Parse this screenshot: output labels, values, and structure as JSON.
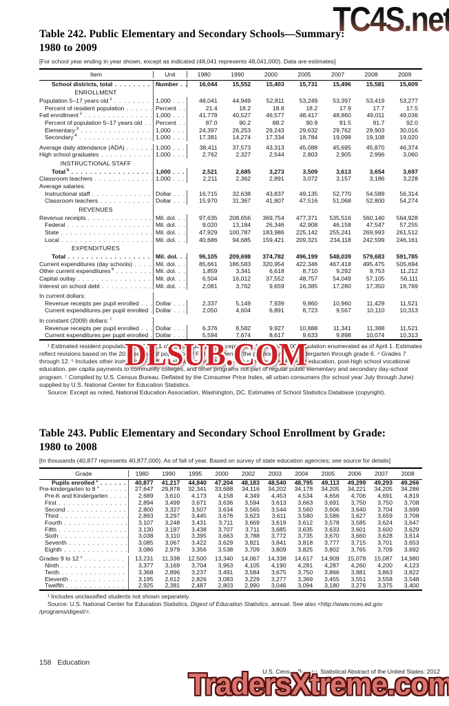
{
  "watermarks": {
    "top": "TC4S.net",
    "middle": "DLSUB.COM",
    "bottom": "TradersXtreme.com"
  },
  "footer": {
    "page_number": "158",
    "section": "Education",
    "source_line": "U.S. Census Bureau, Statistical Abstract of the United States: 2012"
  },
  "table242": {
    "title_line1": "Table 242. Public Elementary and Secondary Schools—Summary:",
    "title_line2": "1980 to 2009",
    "note": "[For school year ending in year shown, except as indicated (48,041 represents 48,041,000). Data are estimates]",
    "columns": [
      "Item",
      "Unit",
      "1980",
      "1990",
      "2000",
      "2005",
      "2007",
      "2008",
      "2009"
    ],
    "rows": [
      {
        "type": "data",
        "label": "School districts, total",
        "unit": "Number",
        "bold": true,
        "indent": 2,
        "values": [
          "16,044",
          "15,552",
          "15,403",
          "15,731",
          "15,496",
          "15,581",
          "15,609"
        ]
      },
      {
        "type": "section",
        "label": "ENROLLMENT"
      },
      {
        "type": "data",
        "label": "Population 5–17 years old",
        "sup": "1",
        "unit": "1,000",
        "indent": 0,
        "values": [
          "48,041",
          "44,949",
          "52,811",
          "53,249",
          "53,397",
          "53,419",
          "53,277"
        ]
      },
      {
        "type": "data",
        "label": "Percent of resident population",
        "unit": "Percent",
        "indent": 1,
        "values": [
          "21.4",
          "18.2",
          "18.8",
          "18.2",
          "17.9",
          "17.7",
          "17.5"
        ]
      },
      {
        "type": "data",
        "label": "Fall enrollment",
        "sup": "2",
        "unit": "1,000",
        "indent": 0,
        "values": [
          "41,778",
          "40,527",
          "46,577",
          "48,417",
          "48,860",
          "49,011",
          "49,036"
        ]
      },
      {
        "type": "data",
        "label": "Percent of population 5–17 years old",
        "unit": "Percent",
        "indent": 1,
        "values": [
          "87.0",
          "90.2",
          "88.2",
          "90.9",
          "91.5",
          "91.7",
          "92.0"
        ]
      },
      {
        "type": "data",
        "label": "Elementary",
        "sup": "3",
        "unit": "1,000",
        "indent": 1,
        "values": [
          "24,397",
          "26,253",
          "29,243",
          "29,632",
          "29,762",
          "29,903",
          "30,016"
        ]
      },
      {
        "type": "data",
        "label": "Secondary",
        "sup": "4",
        "unit": "1,000",
        "indent": 1,
        "values": [
          "17,381",
          "14,274",
          "17,334",
          "18,784",
          "19,098",
          "19,108",
          "19,020"
        ]
      },
      {
        "type": "data",
        "label": "Average daily attendance (ADA)",
        "unit": "1,000",
        "indent": 0,
        "spacer": true,
        "values": [
          "38,411",
          "37,573",
          "43,313",
          "45,088",
          "45,695",
          "45,870",
          "46,374"
        ]
      },
      {
        "type": "data",
        "label": "High school graduates",
        "unit": "1,000",
        "indent": 0,
        "values": [
          "2,762",
          "2,327",
          "2,544",
          "2,803",
          "2,905",
          "2,996",
          "3,060"
        ]
      },
      {
        "type": "section",
        "label": "INSTRUCTIONAL STAFF"
      },
      {
        "type": "data",
        "label": "Total",
        "sup": "5",
        "unit": "1,000",
        "bold": true,
        "indent": 2,
        "values": [
          "2,521",
          "2,685",
          "3,273",
          "3,509",
          "3,613",
          "3,654",
          "3,697"
        ]
      },
      {
        "type": "data",
        "label": "Classroom teachers",
        "unit": "1,000",
        "indent": 0,
        "values": [
          "2,211",
          "2,362",
          "2,891",
          "3,072",
          "3,157",
          "3,186",
          "3,228"
        ]
      },
      {
        "type": "plain",
        "label": "Average salaries:",
        "indent": 0
      },
      {
        "type": "data",
        "label": "Instructional staff",
        "unit": "Dollar",
        "indent": 1,
        "values": [
          "16,715",
          "32,638",
          "43,837",
          "49,135",
          "52,770",
          "54,589",
          "56,314"
        ]
      },
      {
        "type": "data",
        "label": "Classroom teachers",
        "unit": "Dollar",
        "indent": 1,
        "values": [
          "15,970",
          "31,367",
          "41,807",
          "47,516",
          "51,068",
          "52,800",
          "54,274"
        ]
      },
      {
        "type": "section",
        "label": "REVENUES"
      },
      {
        "type": "data",
        "label": "Revenue receipts",
        "unit": "Mil. dol.",
        "indent": 0,
        "values": [
          "97,635",
          "208,656",
          "369,754",
          "477,371",
          "535,516",
          "560,140",
          "564,928"
        ]
      },
      {
        "type": "data",
        "label": "Federal",
        "unit": "Mil. dol.",
        "indent": 1,
        "values": [
          "9,020",
          "13,184",
          "26,346",
          "42,908",
          "46,158",
          "47,547",
          "57,255"
        ]
      },
      {
        "type": "data",
        "label": "State",
        "unit": "Mil. dol.",
        "indent": 1,
        "values": [
          "47,929",
          "100,787",
          "183,986",
          "225,142",
          "255,241",
          "269,993",
          "261,512"
        ]
      },
      {
        "type": "data",
        "label": "Local",
        "unit": "Mil. dol.",
        "indent": 1,
        "values": [
          "40,686",
          "94,685",
          "159,421",
          "209,321",
          "234,118",
          "242,599",
          "246,161"
        ]
      },
      {
        "type": "section",
        "label": "EXPENDITURES"
      },
      {
        "type": "data",
        "label": "Total",
        "unit": "Mil. dol.",
        "bold": true,
        "indent": 2,
        "values": [
          "96,105",
          "209,698",
          "374,782",
          "496,199",
          "548,039",
          "579,683",
          "591,785"
        ]
      },
      {
        "type": "data",
        "label": "Current expenditures (day schools)",
        "unit": "Mil. dol.",
        "indent": 0,
        "values": [
          "85,661",
          "186,583",
          "320,954",
          "422,346",
          "467,418",
          "495,475",
          "505,694"
        ]
      },
      {
        "type": "data",
        "label": "Other current expenditures",
        "sup": "6",
        "unit": "Mil. dol.",
        "indent": 0,
        "values": [
          "1,859",
          "3,341",
          "6,618",
          "8,710",
          "9,292",
          "9,753",
          "11,212"
        ]
      },
      {
        "type": "data",
        "label": "Capital outlay",
        "unit": "Mil. dol.",
        "indent": 0,
        "values": [
          "6,504",
          "16,012",
          "37,552",
          "48,757",
          "54,049",
          "57,105",
          "56,111"
        ]
      },
      {
        "type": "data",
        "label": "Interest on school debt",
        "unit": "Mil. dol.",
        "indent": 0,
        "values": [
          "2,081",
          "3,762",
          "9,659",
          "16,385",
          "17,280",
          "17,350",
          "18,769"
        ]
      },
      {
        "type": "plain",
        "label": "In current dollars:",
        "indent": 0,
        "spacer": true
      },
      {
        "type": "data",
        "label": "Revenue receipts per pupil enrolled",
        "unit": "Dollar",
        "indent": 1,
        "values": [
          "2,337",
          "5,149",
          "7,939",
          "9,860",
          "10,960",
          "11,429",
          "11,521"
        ]
      },
      {
        "type": "data",
        "label": "Current expenditures per pupil enrolled",
        "unit": "Dollar",
        "indent": 1,
        "values": [
          "2,050",
          "4,604",
          "6,891",
          "8,723",
          "9,567",
          "10,110",
          "10,313"
        ]
      },
      {
        "type": "plain",
        "label": "In constant (2009) dollars:",
        "sup": "7",
        "indent": 0,
        "spacer": true
      },
      {
        "type": "data",
        "label": "Revenue receipts per pupil enrolled",
        "unit": "Dollar",
        "indent": 1,
        "values": [
          "6,376",
          "8,582",
          "9,927",
          "10,888",
          "11,341",
          "11,388",
          "11,521"
        ]
      },
      {
        "type": "data",
        "label": "Current expenditures per pupil enrolled",
        "unit": "Dollar",
        "indent": 1,
        "values": [
          "5,594",
          "7,674",
          "8,617",
          "9,633",
          "9,898",
          "10,074",
          "10,313"
        ]
      }
    ],
    "footnote": "¹ Estimated resident population as of July 1 of the previous year, except 1980, 1990, and 2000 population enumerated as of April 1. Estimates reflect revisions based on the 2010 census of population. ² Fall enrollment of the previous year. ³ Kindergarten through grade 6. ⁴ Grades 7 through 12. ⁵ Includes other instructional staff, not shown separately. ⁶ Covers summer schools, adult education, post-high school vocational education, per capita payments to community colleges, and other programs not part of regular public elementary and secondary day-school program. ⁷ Compiled by U.S. Census Bureau. Deflated by the Consumer Price Index, all urban consumers (for school year July through June) supplied by U.S. National Center for Education Statistics.",
    "source": "Source: Except as noted, National Education Association, Washington, DC, Estimates of School Statistics Database (copyright)."
  },
  "table243": {
    "title_line1": "Table 243. Public Elementary and Secondary School Enrollment by Grade:",
    "title_line2": "1980 to 2008",
    "note": "[In thousands (40,877 represents 40,877,000). As of fall of year. Based on survey of state education agencies; see source for details]",
    "columns": [
      "Grade",
      "1980",
      "1990",
      "1995",
      "2000",
      "2002",
      "2003",
      "2004",
      "2005",
      "2006",
      "2007",
      "2008"
    ],
    "rows": [
      {
        "type": "data",
        "label": "Pupils enrolled",
        "sup": "1",
        "bold": true,
        "indent": 2,
        "values": [
          "40,877",
          "41,217",
          "44,840",
          "47,204",
          "48,183",
          "48,540",
          "48,795",
          "49,113",
          "49,299",
          "49,293",
          "49,266"
        ]
      },
      {
        "type": "data",
        "label": "Pre-kindergarten to 8",
        "sup": "1",
        "indent": 0,
        "values": [
          "27,647",
          "29,878",
          "32,341",
          "33,688",
          "34,116",
          "34,202",
          "34,178",
          "34,205",
          "34,221",
          "34,205",
          "34,286"
        ]
      },
      {
        "type": "data",
        "label": "Pre-K and Kindergarten",
        "indent": 1,
        "values": [
          "2,689",
          "3,610",
          "4,173",
          "4,158",
          "4,349",
          "4,453",
          "4,534",
          "4,656",
          "4,706",
          "4,691",
          "4,819"
        ]
      },
      {
        "type": "data",
        "label": "First",
        "indent": 1,
        "values": [
          "2,894",
          "3,499",
          "3,671",
          "3,636",
          "3,594",
          "3,613",
          "3,663",
          "3,691",
          "3,750",
          "3,750",
          "3,708"
        ]
      },
      {
        "type": "data",
        "label": "Second",
        "indent": 1,
        "values": [
          "2,800",
          "3,327",
          "3,507",
          "3,634",
          "3,565",
          "3,544",
          "3,560",
          "3,606",
          "3,640",
          "3,704",
          "3,699"
        ]
      },
      {
        "type": "data",
        "label": "Third",
        "indent": 1,
        "values": [
          "2,893",
          "3,297",
          "3,445",
          "3,676",
          "3,623",
          "3,611",
          "3,580",
          "3,586",
          "3,627",
          "3,659",
          "3,708"
        ]
      },
      {
        "type": "data",
        "label": "Fourth",
        "indent": 1,
        "values": [
          "3,107",
          "3,248",
          "3,431",
          "3,711",
          "3,669",
          "3,619",
          "3,612",
          "3,578",
          "3,585",
          "3,624",
          "3,647"
        ]
      },
      {
        "type": "data",
        "label": "Fifth",
        "indent": 1,
        "values": [
          "3,130",
          "3,197",
          "3,438",
          "3,707",
          "3,711",
          "3,685",
          "3,635",
          "3,633",
          "3,601",
          "3,600",
          "3,629"
        ]
      },
      {
        "type": "data",
        "label": "Sixth",
        "indent": 1,
        "values": [
          "3,038",
          "3,110",
          "3,395",
          "3,663",
          "3,788",
          "3,772",
          "3,735",
          "3,670",
          "3,660",
          "3,628",
          "3,614"
        ]
      },
      {
        "type": "data",
        "label": "Seventh",
        "indent": 1,
        "values": [
          "3,085",
          "3,067",
          "3,422",
          "3,629",
          "3,821",
          "3,841",
          "3,818",
          "3,777",
          "3,715",
          "3,701",
          "3,653"
        ]
      },
      {
        "type": "data",
        "label": "Eighth",
        "indent": 1,
        "values": [
          "3,086",
          "2,979",
          "3,356",
          "3,538",
          "3,709",
          "3,809",
          "3,825",
          "3,802",
          "3,765",
          "3,709",
          "3,692"
        ]
      },
      {
        "type": "data",
        "label": "Grades 9 to 12",
        "sup": "1",
        "indent": 0,
        "spacer": true,
        "values": [
          "13,231",
          "11,338",
          "12,500",
          "13,340",
          "14,067",
          "14,338",
          "14,617",
          "14,909",
          "15,078",
          "15,087",
          "14,980"
        ]
      },
      {
        "type": "data",
        "label": "Ninth",
        "indent": 1,
        "values": [
          "3,377",
          "3,169",
          "3,704",
          "3,963",
          "4,105",
          "4,190",
          "4,281",
          "4,287",
          "4,260",
          "4,200",
          "4,123"
        ]
      },
      {
        "type": "data",
        "label": "Tenth",
        "indent": 1,
        "values": [
          "3,368",
          "2,896",
          "3,237",
          "3,491",
          "3,584",
          "3,675",
          "3,750",
          "3,866",
          "3,881",
          "3,863",
          "3,822"
        ]
      },
      {
        "type": "data",
        "label": "Eleventh",
        "indent": 1,
        "values": [
          "3,195",
          "2,612",
          "2,826",
          "3,083",
          "3,229",
          "3,277",
          "3,369",
          "3,455",
          "3,551",
          "3,558",
          "3,548"
        ]
      },
      {
        "type": "data",
        "label": "Twelfth",
        "indent": 1,
        "values": [
          "2,925",
          "2,381",
          "2,487",
          "2,803",
          "2,990",
          "3,046",
          "3,094",
          "3,180",
          "3,276",
          "3,375",
          "3,400"
        ]
      }
    ],
    "footnote": "¹ Includes unclassified students not shown separately.",
    "source_parts": {
      "pre": "Source: U.S. National Center for Education Statistics, ",
      "italic": "Digest of Education Statistics",
      "post": ", annual. See also <http://www.nces.ed.gov /programs/digest/>."
    }
  }
}
